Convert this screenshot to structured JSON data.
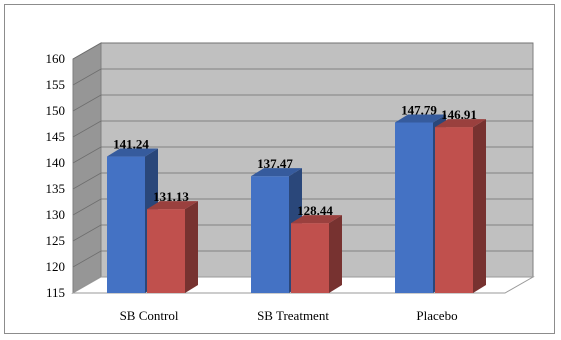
{
  "chart_data": {
    "type": "bar",
    "style": "3d-clustered-column",
    "categories": [
      "SB Control",
      "SB Treatment",
      "Placebo"
    ],
    "series": [
      {
        "values": [
          141.24,
          137.47,
          147.79
        ],
        "color": "#4472C4"
      },
      {
        "values": [
          131.13,
          128.44,
          146.91
        ],
        "color": "#C0504D"
      }
    ],
    "data_labels": [
      [
        "141.24",
        "137.47",
        "147.79"
      ],
      [
        "131.13",
        "128.44",
        "146.91"
      ]
    ],
    "ylim": [
      115,
      160
    ],
    "yticks": [
      "115",
      "120",
      "125",
      "130",
      "135",
      "140",
      "145",
      "150",
      "155",
      "160"
    ],
    "grid": true,
    "legend": "none",
    "wall_color": "#C0C0C0",
    "floor_color": "#FFFFFF"
  }
}
